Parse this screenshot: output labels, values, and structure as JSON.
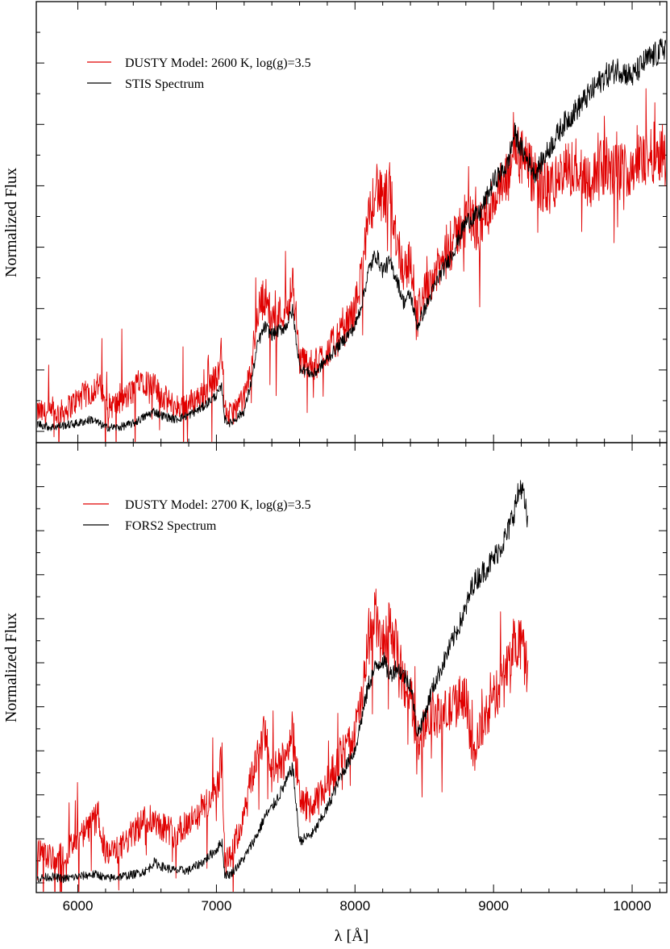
{
  "chart_data": [
    {
      "type": "line",
      "panel": "top",
      "title": "",
      "xlabel": "λ [Å]",
      "ylabel": "Normalized Flux",
      "xlim": [
        5700,
        10250
      ],
      "ylim": [
        0,
        1
      ],
      "y_tick_labels_shown": false,
      "legend_position": "top-left",
      "series": [
        {
          "name": "DUSTY Model: 2600 K, log(g)=3.5",
          "color": "#e00000",
          "x": [
            5700,
            5800,
            5900,
            6000,
            6100,
            6150,
            6200,
            6300,
            6400,
            6450,
            6500,
            6550,
            6600,
            6700,
            6800,
            6900,
            7000,
            7040,
            7060,
            7100,
            7200,
            7250,
            7300,
            7350,
            7400,
            7500,
            7550,
            7600,
            7700,
            7800,
            7900,
            8000,
            8050,
            8100,
            8150,
            8200,
            8250,
            8300,
            8350,
            8400,
            8450,
            8500,
            8550,
            8600,
            8700,
            8800,
            8900,
            9000,
            9100,
            9150,
            9200,
            9300,
            9400,
            9500,
            9600,
            9700,
            9800,
            9900,
            10000,
            10100,
            10200,
            10250
          ],
          "values": [
            0.05,
            0.04,
            0.05,
            0.08,
            0.1,
            0.12,
            0.06,
            0.07,
            0.1,
            0.14,
            0.12,
            0.11,
            0.09,
            0.06,
            0.07,
            0.09,
            0.14,
            0.2,
            0.05,
            0.04,
            0.08,
            0.16,
            0.3,
            0.34,
            0.28,
            0.3,
            0.36,
            0.18,
            0.16,
            0.2,
            0.24,
            0.3,
            0.4,
            0.52,
            0.62,
            0.56,
            0.6,
            0.48,
            0.4,
            0.42,
            0.3,
            0.34,
            0.38,
            0.4,
            0.46,
            0.54,
            0.5,
            0.58,
            0.62,
            0.7,
            0.68,
            0.62,
            0.6,
            0.64,
            0.66,
            0.62,
            0.66,
            0.64,
            0.66,
            0.68,
            0.7,
            0.68
          ]
        },
        {
          "name": "STIS Spectrum",
          "color": "#000000",
          "x": [
            5700,
            5800,
            5900,
            6000,
            6100,
            6150,
            6200,
            6300,
            6400,
            6450,
            6500,
            6550,
            6600,
            6700,
            6800,
            6900,
            7000,
            7040,
            7060,
            7100,
            7200,
            7250,
            7300,
            7350,
            7400,
            7500,
            7550,
            7600,
            7700,
            7800,
            7900,
            8000,
            8050,
            8100,
            8150,
            8200,
            8250,
            8300,
            8350,
            8400,
            8450,
            8500,
            8550,
            8600,
            8700,
            8800,
            8900,
            9000,
            9100,
            9150,
            9200,
            9300,
            9400,
            9500,
            9600,
            9700,
            9800,
            9900,
            10000,
            10100,
            10200,
            10250
          ],
          "values": [
            0.02,
            0.01,
            0.015,
            0.02,
            0.03,
            0.02,
            0.01,
            0.01,
            0.02,
            0.03,
            0.04,
            0.05,
            0.04,
            0.03,
            0.04,
            0.06,
            0.09,
            0.11,
            0.03,
            0.02,
            0.05,
            0.12,
            0.22,
            0.26,
            0.24,
            0.26,
            0.3,
            0.16,
            0.14,
            0.18,
            0.22,
            0.26,
            0.32,
            0.4,
            0.44,
            0.4,
            0.42,
            0.38,
            0.32,
            0.34,
            0.26,
            0.3,
            0.34,
            0.38,
            0.44,
            0.52,
            0.54,
            0.62,
            0.66,
            0.74,
            0.7,
            0.64,
            0.7,
            0.76,
            0.8,
            0.84,
            0.88,
            0.9,
            0.88,
            0.92,
            0.94,
            0.96
          ]
        }
      ]
    },
    {
      "type": "line",
      "panel": "bottom",
      "title": "",
      "xlabel": "λ [Å]",
      "ylabel": "Normalized Flux",
      "xlim": [
        5700,
        10250
      ],
      "ylim": [
        0,
        1
      ],
      "x_tick_labels": [
        "6000",
        "7000",
        "8000",
        "9000",
        "10000"
      ],
      "x_ticks": [
        6000,
        7000,
        8000,
        9000,
        10000
      ],
      "y_tick_labels_shown": false,
      "legend_position": "top-left",
      "series": [
        {
          "name": "DUSTY Model: 2700 K, log(g)=3.5",
          "color": "#e00000",
          "x": [
            5700,
            5800,
            5900,
            6000,
            6100,
            6150,
            6200,
            6300,
            6400,
            6500,
            6600,
            6700,
            6800,
            6900,
            7000,
            7040,
            7060,
            7100,
            7200,
            7300,
            7350,
            7400,
            7500,
            7550,
            7600,
            7700,
            7800,
            7900,
            8000,
            8050,
            8100,
            8150,
            8200,
            8250,
            8300,
            8350,
            8400,
            8450,
            8500,
            8550,
            8600,
            8700,
            8800,
            8850,
            8900,
            9000,
            9100,
            9150,
            9200,
            9250
          ],
          "values": [
            0.08,
            0.06,
            0.07,
            0.1,
            0.14,
            0.16,
            0.07,
            0.08,
            0.12,
            0.16,
            0.14,
            0.12,
            0.14,
            0.18,
            0.22,
            0.3,
            0.05,
            0.06,
            0.16,
            0.32,
            0.36,
            0.26,
            0.3,
            0.38,
            0.2,
            0.18,
            0.24,
            0.3,
            0.36,
            0.44,
            0.58,
            0.64,
            0.56,
            0.62,
            0.56,
            0.48,
            0.46,
            0.34,
            0.38,
            0.42,
            0.4,
            0.42,
            0.46,
            0.3,
            0.36,
            0.44,
            0.52,
            0.58,
            0.6,
            0.5
          ]
        },
        {
          "name": "FORS2 Spectrum",
          "color": "#000000",
          "x": [
            5700,
            5800,
            5900,
            6000,
            6100,
            6150,
            6200,
            6300,
            6400,
            6500,
            6550,
            6600,
            6700,
            6800,
            6900,
            7000,
            7040,
            7060,
            7100,
            7200,
            7300,
            7350,
            7400,
            7500,
            7550,
            7600,
            7700,
            7800,
            7900,
            8000,
            8050,
            8100,
            8150,
            8200,
            8250,
            8300,
            8350,
            8400,
            8450,
            8500,
            8550,
            8600,
            8700,
            8800,
            8850,
            8900,
            9000,
            9100,
            9150,
            9200,
            9250
          ],
          "values": [
            0.01,
            0.015,
            0.01,
            0.015,
            0.02,
            0.02,
            0.01,
            0.015,
            0.02,
            0.03,
            0.05,
            0.04,
            0.03,
            0.03,
            0.05,
            0.08,
            0.1,
            0.02,
            0.02,
            0.06,
            0.12,
            0.16,
            0.18,
            0.24,
            0.28,
            0.1,
            0.12,
            0.18,
            0.26,
            0.32,
            0.4,
            0.48,
            0.52,
            0.54,
            0.5,
            0.52,
            0.5,
            0.48,
            0.36,
            0.4,
            0.46,
            0.5,
            0.58,
            0.66,
            0.72,
            0.74,
            0.78,
            0.84,
            0.9,
            0.96,
            0.86
          ]
        }
      ]
    }
  ]
}
